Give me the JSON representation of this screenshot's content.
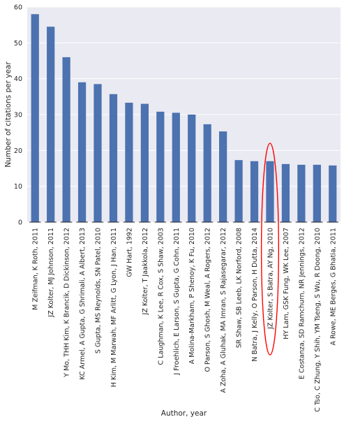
{
  "chart_data": {
    "type": "bar",
    "title": "",
    "xlabel": "Author, year",
    "ylabel": "Number of citations per year",
    "ylim": [
      0,
      60
    ],
    "yticks": [
      "0",
      "10",
      "20",
      "30",
      "40",
      "50",
      "60"
    ],
    "grid": true,
    "legend": "none",
    "colors": {
      "background": "#EAEAF2",
      "bar": "#4C72B0",
      "grid": "#FFFFFF",
      "annotation": "#FF0000"
    },
    "categories": [
      "M Zeifman, K Roth, 2011",
      "JZ Kolter, MJ Johnson, 2011",
      "Y Mo, THH Kim, K Brancik, D Dickinson, 2012",
      "KC Armel, A Gupta, G Shrimali, A Albert, 2013",
      "S Gupta, MS Reynolds, SN Patel, 2010",
      "H Kim, M Marwah, MF Arlitt, G Lyon, J Han, 2011",
      "GW Hart, 1992",
      "JZ Kolter, T Jaakkola, 2012",
      "C Laughman, K Lee, R Cox, S Shaw, 2003",
      "J Froehlich, E Larson, S Gupta, G Cohn, 2011",
      "A Molina-Markham, P Shenoy, K Fu, 2010",
      "O Parson, S Ghosh, M Weal, A Rogers, 2012",
      "A Zoha, A Gluhak, MA Imran, S Rajasegarar, 2012",
      "SR Shaw, SB Leeb, LK Norford, 2008",
      "N Batra, J Kelly, O Parson, H Dutta, 2014",
      "JZ Kolter, S Batra, AY Ng, 2010",
      "HY Lam, GSK Fung, WK Lee, 2007",
      "E Costanza, SD Ramchurn, NR Jennings, 2012",
      "C Tso, C Zhung, Y Shih, YM Tseng, S Wu, R Doong, 2010",
      "A Rowe, ME Berges, G Bhatia, 2011"
    ],
    "values": [
      58,
      54.5,
      46,
      39,
      38.5,
      35.7,
      33.3,
      33,
      30.8,
      30.5,
      30,
      27.3,
      25.3,
      17.3,
      17,
      17,
      16.2,
      16,
      16,
      15.8
    ],
    "annotation": {
      "type": "ellipse",
      "target_category": "JZ Kolter, S Batra, AY Ng, 2010"
    }
  }
}
